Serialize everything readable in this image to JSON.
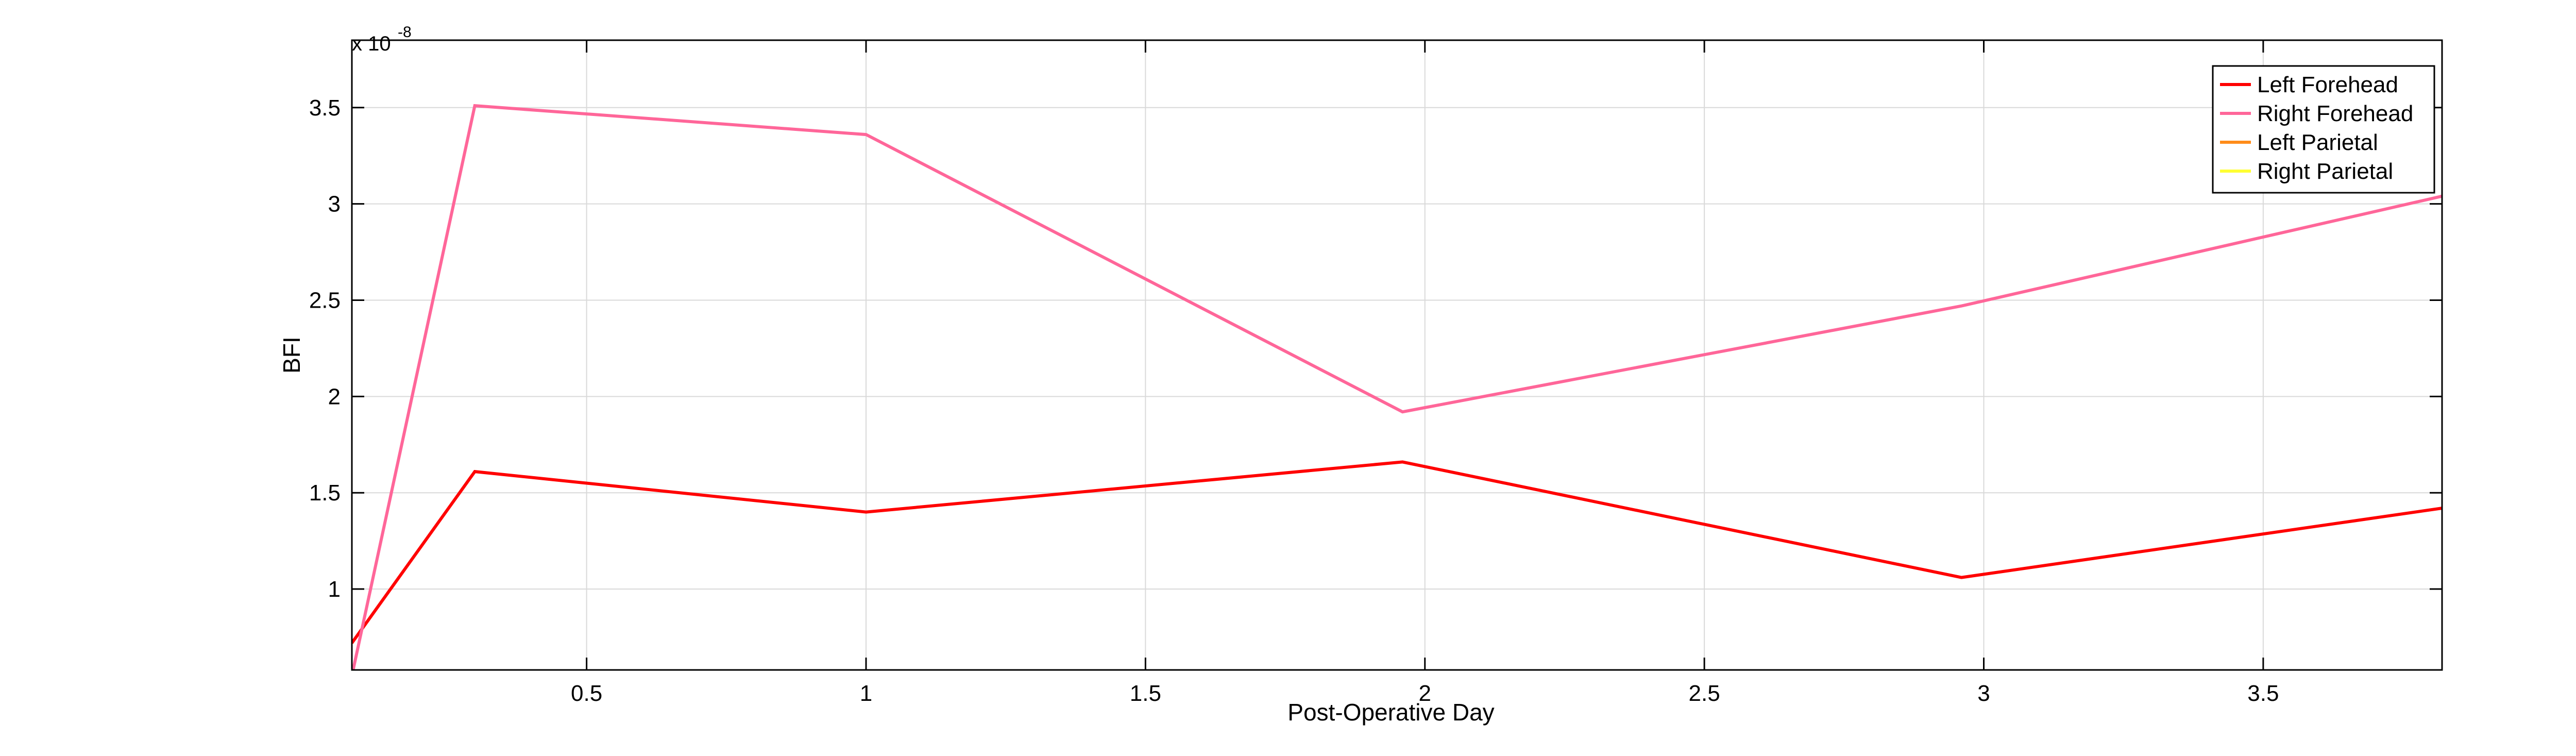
{
  "chart_data": {
    "type": "line",
    "xlabel": "Post-Operative Day",
    "ylabel": "BFI",
    "y_multiplier": {
      "base": "x 10",
      "exponent": "-8"
    },
    "xlim": [
      0.08,
      3.82
    ],
    "ylim": [
      0.58,
      3.85
    ],
    "x_ticks": [
      0.5,
      1,
      1.5,
      2,
      2.5,
      3,
      3.5
    ],
    "x_tick_labels": [
      "0.5",
      "1",
      "1.5",
      "2",
      "2.5",
      "3",
      "3.5"
    ],
    "y_ticks": [
      1,
      1.5,
      2,
      2.5,
      3,
      3.5
    ],
    "y_tick_labels": [
      "1",
      "1.5",
      "2",
      "2.5",
      "3",
      "3.5"
    ],
    "grid": true,
    "legend_position": "top-right",
    "series": [
      {
        "name": "Left Forehead",
        "color": "#ff0000",
        "x": [
          0.08,
          0.3,
          1.0,
          1.96,
          2.96,
          3.82
        ],
        "y": [
          0.72,
          1.61,
          1.4,
          1.66,
          1.06,
          1.42
        ]
      },
      {
        "name": "Right Forehead",
        "color": "#ff6699",
        "x": [
          0.08,
          0.3,
          1.0,
          1.96,
          2.96,
          3.82
        ],
        "y": [
          0.55,
          3.51,
          3.36,
          1.92,
          2.47,
          3.04
        ]
      },
      {
        "name": "Left Parietal",
        "color": "#ff8c1a",
        "x": [],
        "y": []
      },
      {
        "name": "Right Parietal",
        "color": "#ffff33",
        "x": [],
        "y": []
      }
    ]
  }
}
